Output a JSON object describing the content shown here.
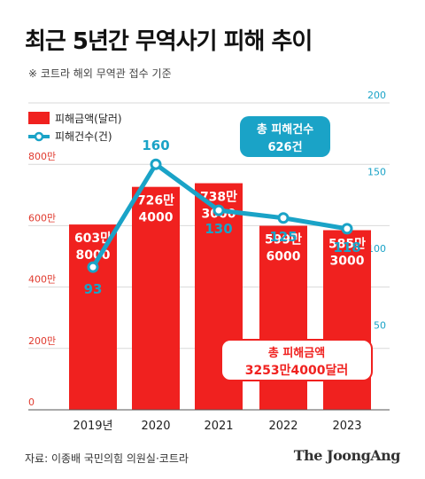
{
  "header": {
    "title": "최근 5년간 무역사기 피해 추이",
    "subtitle": "※ 코트라 해외 무역관 접수 기준"
  },
  "footer": {
    "source": "자료: 이종배 국민의힘 의원실·코트라",
    "brand": "The JoongAng"
  },
  "colors": {
    "bar": "#f0211f",
    "line": "#1aa3c7",
    "grid": "#d9d9d9",
    "axis_left": "#e03a2e",
    "axis_right": "#1aa3c7"
  },
  "chart_data": {
    "type": "bar+line",
    "categories": [
      "2019년",
      "2020",
      "2021",
      "2022",
      "2023"
    ],
    "series": [
      {
        "name": "피해금액(달러)",
        "type": "bar",
        "axis": "left",
        "values": [
          6038000,
          7264000,
          7383000,
          5996000,
          5853000
        ],
        "labels": [
          [
            "603만",
            "8000"
          ],
          [
            "726만",
            "4000"
          ],
          [
            "738만",
            "3000"
          ],
          [
            "599만",
            "6000"
          ],
          [
            "585만",
            "3000"
          ]
        ]
      },
      {
        "name": "피해건수(건)",
        "type": "line",
        "axis": "right",
        "values": [
          93,
          160,
          130,
          125,
          118
        ],
        "labels": [
          "93",
          "160",
          "130",
          "125",
          "118"
        ]
      }
    ],
    "left_axis": {
      "ticks": [
        0,
        2000000,
        4000000,
        6000000,
        8000000
      ],
      "tick_labels": [
        "0",
        "200만",
        "400만",
        "600만",
        "800만"
      ],
      "range": [
        0,
        10000000
      ]
    },
    "right_axis": {
      "ticks": [
        50,
        100,
        150,
        200
      ],
      "tick_labels": [
        "50",
        "100",
        "150",
        "200"
      ],
      "range": [
        0,
        200
      ]
    },
    "annotations": {
      "total_count": [
        "총 피해건수",
        "626건"
      ],
      "total_amount": [
        "총 피해금액",
        "3253만4000달러"
      ]
    },
    "grid": true,
    "legend": "top-left"
  }
}
